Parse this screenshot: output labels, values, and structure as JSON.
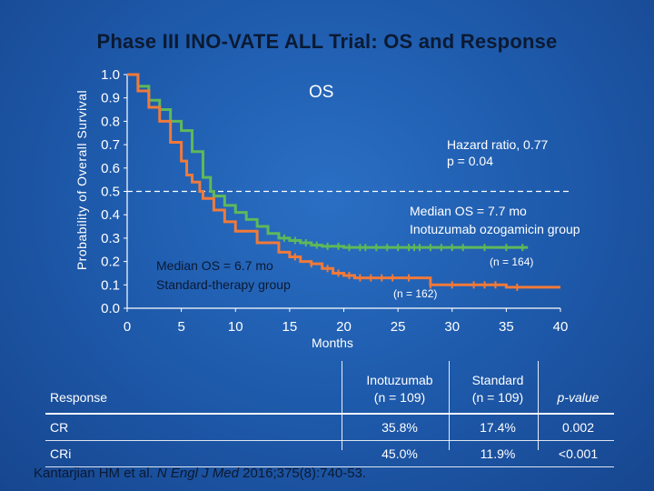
{
  "title": "Phase III INO-VATE ALL Trial: OS and Response",
  "chart_data": {
    "type": "line",
    "title": "OS",
    "ylabel": "Probability of Overall Survival",
    "xlabel": "Months",
    "xlim": [
      0,
      40
    ],
    "ylim": [
      0,
      1.0
    ],
    "xticks": [
      0,
      5,
      10,
      15,
      20,
      25,
      30,
      35,
      40
    ],
    "yticks": [
      "0.0",
      "0.1",
      "0.2",
      "0.3",
      "0.4",
      "0.5",
      "0.6",
      "0.7",
      "0.8",
      "0.9",
      "1.0"
    ],
    "reference_line_y": 0.5,
    "series": [
      {
        "name": "Inotuzumab ozogamicin",
        "color": "#5fb85a",
        "x": [
          0,
          1,
          2,
          3,
          4,
          5,
          6,
          7,
          7.7,
          8,
          9,
          10,
          11,
          12,
          13,
          14,
          15,
          16,
          17,
          18,
          20,
          22,
          25,
          27,
          30,
          33,
          37
        ],
        "y": [
          1.0,
          0.95,
          0.89,
          0.85,
          0.8,
          0.76,
          0.67,
          0.56,
          0.5,
          0.48,
          0.44,
          0.41,
          0.38,
          0.35,
          0.32,
          0.3,
          0.29,
          0.28,
          0.27,
          0.265,
          0.26,
          0.26,
          0.26,
          0.26,
          0.26,
          0.26,
          0.26
        ],
        "censor_x": [
          14.5,
          15.5,
          16.5,
          17.5,
          18.5,
          19.5,
          20.5,
          21.5,
          22,
          23,
          24,
          25,
          26,
          26.5,
          27,
          28,
          29,
          30,
          31,
          33,
          35,
          36.5
        ]
      },
      {
        "name": "Standard therapy",
        "color": "#f07a3a",
        "x": [
          0,
          1,
          2,
          3,
          4,
          5,
          5.5,
          6,
          6.7,
          7,
          8,
          9,
          10,
          12,
          14,
          15,
          16,
          17,
          18,
          19,
          20,
          21,
          22,
          25,
          28,
          32,
          35,
          40
        ],
        "y": [
          1.0,
          0.93,
          0.86,
          0.8,
          0.71,
          0.63,
          0.57,
          0.54,
          0.5,
          0.47,
          0.42,
          0.37,
          0.33,
          0.28,
          0.24,
          0.22,
          0.2,
          0.19,
          0.17,
          0.15,
          0.14,
          0.13,
          0.13,
          0.13,
          0.1,
          0.1,
          0.09,
          0.09
        ],
        "censor_x": [
          15.5,
          17,
          18.5,
          19.5,
          20.5,
          21.5,
          22.5,
          23.5,
          24.5,
          26,
          28,
          30,
          32,
          33,
          34,
          36
        ]
      }
    ],
    "annotations": {
      "hazard_ratio": "Hazard ratio, 0.77",
      "p_value": "p = 0.04",
      "median_experimental_1": "Median OS = 7.7 mo",
      "median_experimental_2": "Inotuzumab ozogamicin group",
      "median_standard_1": "Median OS = 6.7 mo",
      "median_standard_2": "Standard-therapy group",
      "n_experimental": "(n = 164)",
      "n_standard": "(n = 162)"
    }
  },
  "table": {
    "headers": {
      "response": "Response",
      "ino_1": "Inotuzumab",
      "ino_2": "(n = 109)",
      "std_1": "Standard",
      "std_2": "(n = 109)",
      "p": "p-value"
    },
    "rows": [
      {
        "response": "CR",
        "ino": "35.8%",
        "std": "17.4%",
        "p": "0.002"
      },
      {
        "response": "CRi",
        "ino": "45.0%",
        "std": "11.9%",
        "p": "<0.001"
      }
    ]
  },
  "citation": {
    "authors": "Kantarjian HM et al. ",
    "journal": "N Engl J Med",
    "details": " 2016;375(8):740-53."
  }
}
